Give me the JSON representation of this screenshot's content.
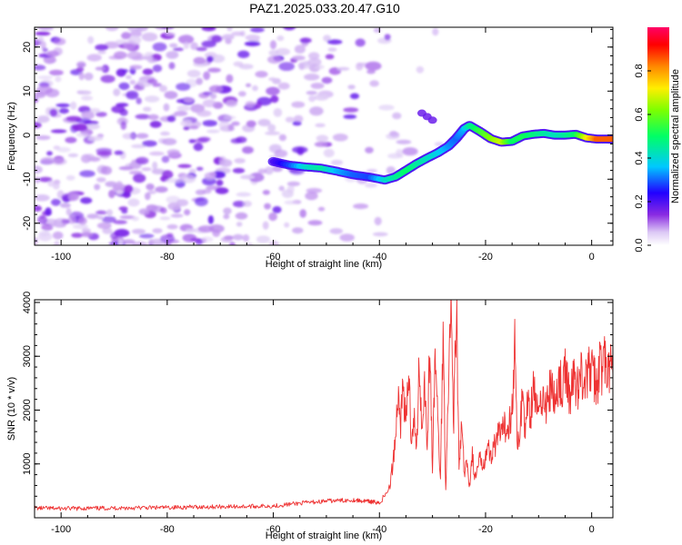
{
  "title": "PAZ1.2025.033.20.47.G10",
  "chart_data": [
    {
      "type": "heatmap",
      "xlabel": "Height of straight line (km)",
      "ylabel": "Frequency (Hz)",
      "xlim": [
        -105,
        4
      ],
      "ylim": [
        -25,
        24.5
      ],
      "x_ticks": [
        "-100",
        "-80",
        "-60",
        "-40",
        "-20",
        "0"
      ],
      "x_tick_values": [
        -100,
        -80,
        -60,
        -40,
        -20,
        0
      ],
      "y_ticks": [
        "20",
        "10",
        "0",
        "-10",
        "-20"
      ],
      "y_tick_values": [
        20,
        10,
        0,
        -10,
        -20
      ],
      "colorbar": {
        "label": "Normalized spectral amplitude",
        "ticks": [
          "0.0",
          "0.2",
          "0.4",
          "0.6",
          "0.8"
        ],
        "tick_values": [
          0.0,
          0.2,
          0.4,
          0.6,
          0.8
        ],
        "range": [
          0,
          1
        ],
        "colormap": "rainbow (purple to magenta)"
      },
      "ridge": {
        "description": "peak spectral amplitude track",
        "x": [
          -60,
          -57,
          -54,
          -51,
          -48,
          -45,
          -42,
          -39,
          -37,
          -35,
          -33,
          -31,
          -29,
          -27,
          -25.5,
          -24,
          -23,
          -21,
          -19,
          -17,
          -15,
          -13,
          -11,
          -9,
          -7,
          -5,
          -3,
          -1,
          1,
          3,
          4
        ],
        "y": [
          -6,
          -6.8,
          -7.2,
          -7.5,
          -8.2,
          -9,
          -9.5,
          -10.2,
          -9.5,
          -8,
          -6.5,
          -5.2,
          -4,
          -2.5,
          -0.7,
          1.5,
          2.2,
          0.8,
          -0.8,
          -1.6,
          -1.4,
          -0.2,
          0.2,
          0.4,
          0.0,
          0.0,
          0.2,
          -0.6,
          -0.9,
          -0.9,
          -0.9
        ],
        "amplitude": [
          0.2,
          0.28,
          0.4,
          0.45,
          0.35,
          0.3,
          0.28,
          0.4,
          0.45,
          0.5,
          0.45,
          0.42,
          0.38,
          0.33,
          0.3,
          0.35,
          0.45,
          0.55,
          0.62,
          0.68,
          0.5,
          0.52,
          0.48,
          0.45,
          0.42,
          0.45,
          0.5,
          0.7,
          0.85,
          0.85,
          0.85
        ]
      }
    },
    {
      "type": "line",
      "xlabel": "Height of straight line (km)",
      "ylabel": "SNR (10 * v/v)",
      "xlim": [
        -105,
        4
      ],
      "ylim": [
        0,
        4050
      ],
      "x_ticks": [
        "-100",
        "-80",
        "-60",
        "-40",
        "-20",
        "0"
      ],
      "x_tick_values": [
        -100,
        -80,
        -60,
        -40,
        -20,
        0
      ],
      "y_ticks": [
        "1000",
        "2000",
        "3000",
        "4000"
      ],
      "y_tick_values": [
        1000,
        2000,
        3000,
        4000
      ],
      "series": [
        {
          "color": "#ee3333",
          "x": [
            -105,
            -100,
            -95,
            -90,
            -85,
            -80,
            -75,
            -70,
            -65,
            -60,
            -55,
            -50,
            -45,
            -42,
            -40,
            -39,
            -38,
            -37.5,
            -37,
            -36.5,
            -36,
            -35.5,
            -35,
            -34.5,
            -34,
            -33.5,
            -33,
            -32.5,
            -32,
            -31.5,
            -31,
            -30.5,
            -30,
            -29.5,
            -29,
            -28.5,
            -28,
            -27.5,
            -27,
            -26.5,
            -26,
            -25.5,
            -25,
            -24.5,
            -24,
            -23.5,
            -23,
            -22.5,
            -22,
            -21.5,
            -21,
            -20.5,
            -20,
            -19.5,
            -19,
            -18.5,
            -18,
            -17.5,
            -17,
            -16.5,
            -16,
            -15.5,
            -15,
            -14.5,
            -14,
            -13.5,
            -13,
            -12.5,
            -12,
            -11.5,
            -11,
            -10.5,
            -10,
            -9.5,
            -9,
            -8.5,
            -8,
            -7.5,
            -7,
            -6.5,
            -6,
            -5.5,
            -5,
            -4.5,
            -4,
            -3.5,
            -3,
            -2.5,
            -2,
            -1.5,
            -1,
            -0.5,
            0,
            0.5,
            1,
            1.5,
            2,
            2.5,
            3,
            3.5,
            4
          ],
          "y": [
            180,
            170,
            175,
            180,
            185,
            190,
            200,
            205,
            210,
            220,
            270,
            310,
            330,
            300,
            280,
            400,
            600,
            1000,
            1500,
            2300,
            1800,
            2500,
            1600,
            2800,
            1500,
            1900,
            1200,
            3000,
            1600,
            2600,
            1300,
            3200,
            900,
            3100,
            1800,
            700,
            3500,
            500,
            2600,
            3900,
            1800,
            4000,
            900,
            1700,
            800,
            1000,
            600,
            1200,
            700,
            900,
            1100,
            1000,
            1200,
            1300,
            1100,
            1400,
            1300,
            1600,
            1500,
            1700,
            1650,
            1800,
            2000,
            3300,
            1200,
            1700,
            2400,
            1500,
            2300,
            1900,
            2600,
            2100,
            1900,
            2200,
            2400,
            2000,
            2300,
            2500,
            2100,
            2400,
            2600,
            2250,
            2700,
            2500,
            2200,
            2600,
            2500,
            2450,
            2700,
            2600,
            2500,
            2800,
            2700,
            2600,
            2400,
            2900,
            2700,
            2950,
            2600,
            2800,
            2650
          ]
        }
      ]
    }
  ]
}
